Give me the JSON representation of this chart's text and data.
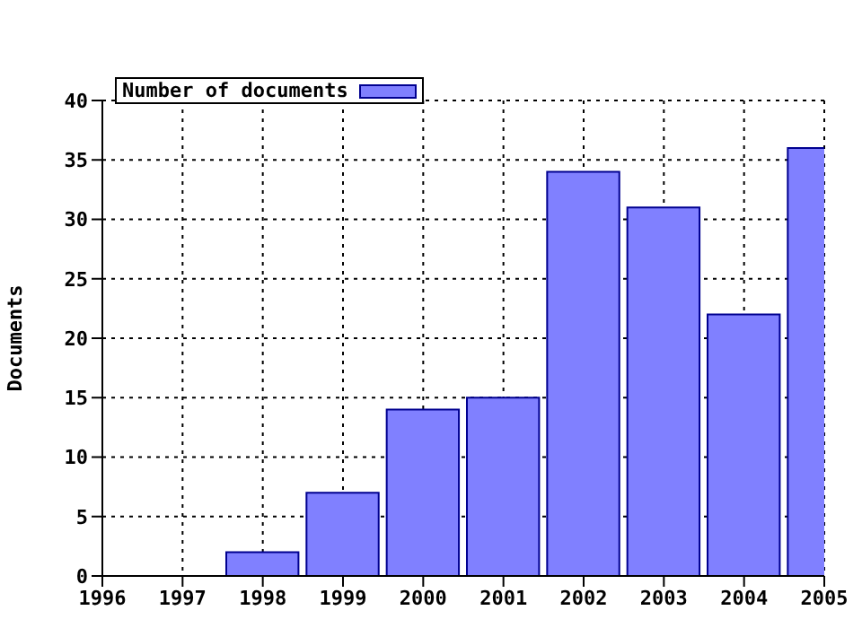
{
  "chart_data": {
    "type": "bar",
    "ylabel": "Documents",
    "x": [
      1996,
      1997,
      1998,
      1999,
      2000,
      2001,
      2002,
      2003,
      2004,
      2005
    ],
    "series": [
      {
        "name": "Number of documents",
        "color": "#8080ff",
        "values": [
          0,
          0,
          2,
          7,
          14,
          15,
          34,
          31,
          22,
          36
        ]
      }
    ],
    "xlim": [
      1996,
      2005
    ],
    "xticks": [
      1996,
      1997,
      1998,
      1999,
      2000,
      2001,
      2002,
      2003,
      2004,
      2005
    ],
    "ylim": [
      0,
      40
    ],
    "yticks": [
      0,
      5,
      10,
      15,
      20,
      25,
      30,
      35,
      40
    ],
    "grid": true,
    "legend": "top left"
  }
}
